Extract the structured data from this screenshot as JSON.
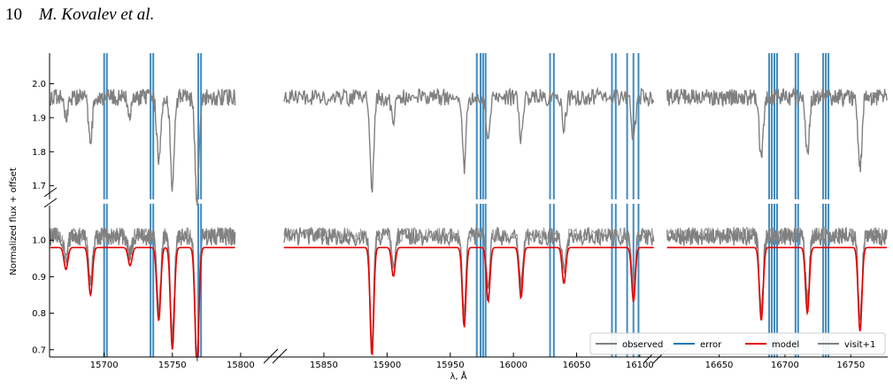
{
  "header": {
    "page_number": "10",
    "authors": "M. Kovalev et al."
  },
  "chart_data": {
    "type": "line",
    "xlabel": "λ, Å",
    "ylabel": "Normalized flux + offset",
    "legend": {
      "placement": "bottom-right",
      "entries": [
        {
          "label": "observed",
          "color": "#808080"
        },
        {
          "label": "error",
          "color": "#1f77b4"
        },
        {
          "label": "model",
          "color": "#e50000"
        },
        {
          "label": "visit+1",
          "color": "#808080"
        }
      ]
    },
    "panels": [
      {
        "name": "upper",
        "ylim": [
          1.66,
          2.09
        ],
        "yticks": [
          "1.7",
          "1.8",
          "1.9",
          "2.0"
        ]
      },
      {
        "name": "lower",
        "ylim": [
          0.68,
          1.1
        ],
        "yticks": [
          "0.7",
          "0.8",
          "0.9",
          "1.0"
        ]
      }
    ],
    "segments": [
      {
        "xlim": [
          15660,
          15815
        ],
        "xticks": [
          "15700",
          "15750",
          "15800"
        ],
        "error_lines": [
          15700,
          15702,
          15734,
          15736,
          15769,
          15771
        ]
      },
      {
        "xlim": [
          15815,
          16112
        ],
        "xticks": [
          "15850",
          "15900",
          "15950",
          "16000",
          "16050",
          "16100"
        ],
        "error_lines": [
          15971,
          15974,
          15976,
          15978,
          16029,
          16032,
          16078,
          16081,
          16090,
          16095,
          16099
        ]
      },
      {
        "xlim": [
          16610,
          16778
        ],
        "xticks": [
          "16650",
          "16700",
          "16750"
        ],
        "error_lines": [
          16688,
          16690,
          16692,
          16694,
          16708,
          16710,
          16729,
          16731,
          16733
        ]
      }
    ],
    "absorption_lines": [
      {
        "x": 15672,
        "depth": 0.06
      },
      {
        "x": 15690,
        "depth": 0.13
      },
      {
        "x": 15719,
        "depth": 0.05
      },
      {
        "x": 15740,
        "depth": 0.2
      },
      {
        "x": 15750,
        "depth": 0.28
      },
      {
        "x": 15768,
        "depth": 0.33
      },
      {
        "x": 15888,
        "depth": 0.3
      },
      {
        "x": 15905,
        "depth": 0.08
      },
      {
        "x": 15961,
        "depth": 0.22
      },
      {
        "x": 15980,
        "depth": 0.15
      },
      {
        "x": 16006,
        "depth": 0.14
      },
      {
        "x": 16040,
        "depth": 0.1
      },
      {
        "x": 16095,
        "depth": 0.15
      },
      {
        "x": 16682,
        "depth": 0.2
      },
      {
        "x": 16717,
        "depth": 0.18
      },
      {
        "x": 16757,
        "depth": 0.23
      }
    ]
  }
}
